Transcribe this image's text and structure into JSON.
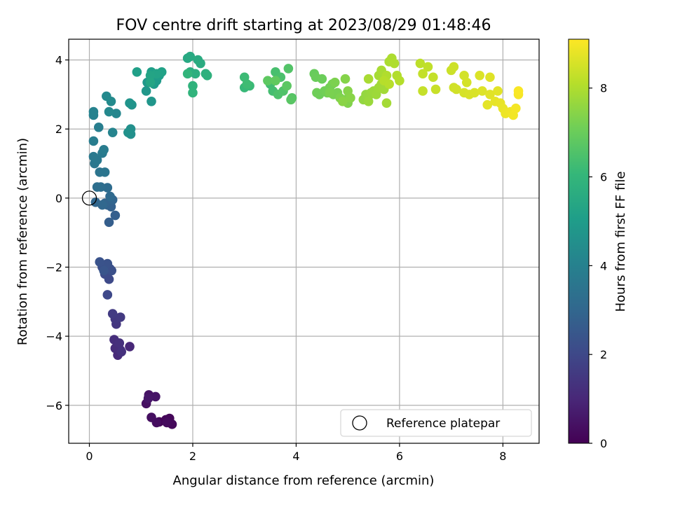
{
  "chart_data": {
    "type": "scatter",
    "title": "FOV centre drift starting at 2023/08/29 01:48:46",
    "xlabel": "Angular distance from reference (arcmin)",
    "ylabel": "Rotation from reference (arcmin)",
    "xlim": [
      -0.4,
      8.7
    ],
    "ylim": [
      -7.1,
      4.6
    ],
    "xticks": [
      0,
      2,
      4,
      6,
      8
    ],
    "yticks": [
      -6,
      -4,
      -2,
      0,
      2,
      4
    ],
    "grid": true,
    "legend": {
      "placement": "bottom-right",
      "entries": [
        "Reference platepar"
      ]
    },
    "reference_point": {
      "label": "Reference platepar",
      "x": 0,
      "y": 0
    },
    "colorbar": {
      "label": "Hours from first FF file",
      "range": [
        0,
        9.1
      ],
      "ticks": [
        0,
        2,
        4,
        6,
        8
      ],
      "colormap": "viridis",
      "colormap_stops": [
        "#440154",
        "#482878",
        "#3e4989",
        "#31688e",
        "#26828e",
        "#1f9e89",
        "#35b779",
        "#6ece58",
        "#b5de2b",
        "#fde725"
      ]
    },
    "points": [
      {
        "x": 1.35,
        "y": -6.48,
        "t": 0.05
      },
      {
        "x": 1.48,
        "y": -6.42,
        "t": 0.1
      },
      {
        "x": 1.55,
        "y": -6.38,
        "t": 0.15
      },
      {
        "x": 1.6,
        "y": -6.55,
        "t": 0.2
      },
      {
        "x": 1.5,
        "y": -6.5,
        "t": 0.25
      },
      {
        "x": 1.3,
        "y": -6.5,
        "t": 0.3
      },
      {
        "x": 1.2,
        "y": -6.35,
        "t": 0.35
      },
      {
        "x": 1.1,
        "y": -5.95,
        "t": 0.4
      },
      {
        "x": 1.15,
        "y": -5.7,
        "t": 0.45
      },
      {
        "x": 1.28,
        "y": -5.75,
        "t": 0.5
      },
      {
        "x": 1.14,
        "y": -5.8,
        "t": 0.55
      },
      {
        "x": 0.78,
        "y": -4.3,
        "t": 1.0
      },
      {
        "x": 0.6,
        "y": -4.4,
        "t": 1.05
      },
      {
        "x": 0.55,
        "y": -4.55,
        "t": 1.1
      },
      {
        "x": 0.5,
        "y": -4.35,
        "t": 1.15
      },
      {
        "x": 0.48,
        "y": -4.1,
        "t": 1.2
      },
      {
        "x": 0.58,
        "y": -4.2,
        "t": 1.25
      },
      {
        "x": 0.62,
        "y": -4.45,
        "t": 1.3
      },
      {
        "x": 0.52,
        "y": -3.65,
        "t": 1.45
      },
      {
        "x": 0.5,
        "y": -3.5,
        "t": 1.5
      },
      {
        "x": 0.6,
        "y": -3.45,
        "t": 1.55
      },
      {
        "x": 0.45,
        "y": -3.35,
        "t": 1.6
      },
      {
        "x": 0.35,
        "y": -2.8,
        "t": 2.0
      },
      {
        "x": 0.38,
        "y": -2.35,
        "t": 2.05
      },
      {
        "x": 0.3,
        "y": -2.2,
        "t": 2.1
      },
      {
        "x": 0.25,
        "y": -2.0,
        "t": 2.15
      },
      {
        "x": 0.4,
        "y": -2.05,
        "t": 2.2
      },
      {
        "x": 0.43,
        "y": -2.1,
        "t": 2.25
      },
      {
        "x": 0.35,
        "y": -1.9,
        "t": 2.3
      },
      {
        "x": 0.2,
        "y": -1.85,
        "t": 2.35
      },
      {
        "x": 0.28,
        "y": -2.1,
        "t": 2.4
      },
      {
        "x": 0.38,
        "y": -0.7,
        "t": 2.7
      },
      {
        "x": 0.5,
        "y": -0.5,
        "t": 2.75
      },
      {
        "x": 0.42,
        "y": -0.25,
        "t": 2.8
      },
      {
        "x": 0.35,
        "y": -0.2,
        "t": 2.85
      },
      {
        "x": 0.3,
        "y": -0.15,
        "t": 2.9
      },
      {
        "x": 0.45,
        "y": -0.05,
        "t": 2.95
      },
      {
        "x": 0.12,
        "y": -0.12,
        "t": 3.0
      },
      {
        "x": 0.25,
        "y": -0.2,
        "t": 3.05
      },
      {
        "x": 0.4,
        "y": 0.05,
        "t": 3.1
      },
      {
        "x": 0.35,
        "y": 0.3,
        "t": 3.2
      },
      {
        "x": 0.22,
        "y": 0.32,
        "t": 3.25
      },
      {
        "x": 0.15,
        "y": 0.32,
        "t": 3.3
      },
      {
        "x": 0.2,
        "y": 0.75,
        "t": 3.5
      },
      {
        "x": 0.3,
        "y": 0.75,
        "t": 3.55
      },
      {
        "x": 0.1,
        "y": 1.0,
        "t": 3.6
      },
      {
        "x": 0.15,
        "y": 1.1,
        "t": 3.65
      },
      {
        "x": 0.08,
        "y": 1.2,
        "t": 3.7
      },
      {
        "x": 0.25,
        "y": 1.3,
        "t": 3.75
      },
      {
        "x": 0.28,
        "y": 1.4,
        "t": 3.8
      },
      {
        "x": 0.08,
        "y": 1.65,
        "t": 3.85
      },
      {
        "x": 0.18,
        "y": 2.05,
        "t": 3.9
      },
      {
        "x": 0.08,
        "y": 2.4,
        "t": 4.0
      },
      {
        "x": 0.08,
        "y": 2.5,
        "t": 4.05
      },
      {
        "x": 0.45,
        "y": 1.9,
        "t": 4.1
      },
      {
        "x": 0.52,
        "y": 2.45,
        "t": 4.2
      },
      {
        "x": 0.38,
        "y": 2.5,
        "t": 4.25
      },
      {
        "x": 0.33,
        "y": 2.95,
        "t": 4.3
      },
      {
        "x": 0.42,
        "y": 2.8,
        "t": 4.35
      },
      {
        "x": 0.8,
        "y": 1.85,
        "t": 4.5
      },
      {
        "x": 0.8,
        "y": 2.0,
        "t": 4.55
      },
      {
        "x": 0.75,
        "y": 1.9,
        "t": 4.6
      },
      {
        "x": 0.82,
        "y": 2.7,
        "t": 4.65
      },
      {
        "x": 0.78,
        "y": 2.75,
        "t": 4.7
      },
      {
        "x": 1.2,
        "y": 2.8,
        "t": 4.75
      },
      {
        "x": 1.1,
        "y": 3.1,
        "t": 4.8
      },
      {
        "x": 1.12,
        "y": 3.35,
        "t": 4.85
      },
      {
        "x": 1.22,
        "y": 3.45,
        "t": 4.9
      },
      {
        "x": 1.3,
        "y": 3.4,
        "t": 4.95
      },
      {
        "x": 1.25,
        "y": 3.3,
        "t": 5.0
      },
      {
        "x": 1.35,
        "y": 3.55,
        "t": 5.05
      },
      {
        "x": 1.2,
        "y": 3.65,
        "t": 5.1
      },
      {
        "x": 0.92,
        "y": 3.65,
        "t": 5.15
      },
      {
        "x": 1.4,
        "y": 3.65,
        "t": 5.2
      },
      {
        "x": 1.3,
        "y": 3.6,
        "t": 5.25
      },
      {
        "x": 1.18,
        "y": 3.55,
        "t": 5.3
      },
      {
        "x": 1.18,
        "y": 3.35,
        "t": 5.35
      },
      {
        "x": 1.9,
        "y": 4.05,
        "t": 5.45
      },
      {
        "x": 1.95,
        "y": 4.1,
        "t": 5.5
      },
      {
        "x": 2.1,
        "y": 4.0,
        "t": 5.55
      },
      {
        "x": 2.15,
        "y": 3.9,
        "t": 5.6
      },
      {
        "x": 1.95,
        "y": 3.65,
        "t": 5.65
      },
      {
        "x": 2.05,
        "y": 3.6,
        "t": 5.7
      },
      {
        "x": 2.25,
        "y": 3.6,
        "t": 5.75
      },
      {
        "x": 2.28,
        "y": 3.55,
        "t": 5.8
      },
      {
        "x": 2.0,
        "y": 3.25,
        "t": 5.85
      },
      {
        "x": 2.0,
        "y": 3.05,
        "t": 5.9
      },
      {
        "x": 1.9,
        "y": 3.6,
        "t": 5.95
      },
      {
        "x": 3.0,
        "y": 3.2,
        "t": 6.1
      },
      {
        "x": 3.1,
        "y": 3.25,
        "t": 6.15
      },
      {
        "x": 3.0,
        "y": 3.5,
        "t": 6.2
      },
      {
        "x": 3.05,
        "y": 3.3,
        "t": 6.25
      },
      {
        "x": 3.5,
        "y": 3.3,
        "t": 6.3
      },
      {
        "x": 3.55,
        "y": 3.1,
        "t": 6.35
      },
      {
        "x": 3.6,
        "y": 3.65,
        "t": 6.4
      },
      {
        "x": 3.7,
        "y": 3.5,
        "t": 6.45
      },
      {
        "x": 3.65,
        "y": 3.0,
        "t": 6.5
      },
      {
        "x": 3.75,
        "y": 3.1,
        "t": 6.55
      },
      {
        "x": 3.85,
        "y": 3.75,
        "t": 6.6
      },
      {
        "x": 3.92,
        "y": 2.9,
        "t": 6.65
      },
      {
        "x": 3.9,
        "y": 2.85,
        "t": 6.7
      },
      {
        "x": 3.82,
        "y": 3.25,
        "t": 6.75
      },
      {
        "x": 3.45,
        "y": 3.4,
        "t": 6.8
      },
      {
        "x": 3.6,
        "y": 3.4,
        "t": 6.85
      },
      {
        "x": 4.35,
        "y": 3.6,
        "t": 6.95
      },
      {
        "x": 4.38,
        "y": 3.5,
        "t": 7.0
      },
      {
        "x": 4.5,
        "y": 3.45,
        "t": 7.02
      },
      {
        "x": 4.45,
        "y": 3.0,
        "t": 7.05
      },
      {
        "x": 4.4,
        "y": 3.05,
        "t": 7.08
      },
      {
        "x": 4.55,
        "y": 3.1,
        "t": 7.1
      },
      {
        "x": 4.6,
        "y": 3.05,
        "t": 7.12
      },
      {
        "x": 4.65,
        "y": 3.2,
        "t": 7.15
      },
      {
        "x": 4.7,
        "y": 3.3,
        "t": 7.18
      },
      {
        "x": 4.72,
        "y": 3.0,
        "t": 7.2
      },
      {
        "x": 4.8,
        "y": 3.05,
        "t": 7.22
      },
      {
        "x": 4.65,
        "y": 3.05,
        "t": 7.25
      },
      {
        "x": 4.75,
        "y": 3.35,
        "t": 7.28
      },
      {
        "x": 4.85,
        "y": 2.9,
        "t": 7.3
      },
      {
        "x": 4.95,
        "y": 2.85,
        "t": 7.32
      },
      {
        "x": 5.0,
        "y": 2.75,
        "t": 7.35
      },
      {
        "x": 5.05,
        "y": 2.9,
        "t": 7.38
      },
      {
        "x": 4.95,
        "y": 3.45,
        "t": 7.4
      },
      {
        "x": 5.0,
        "y": 3.1,
        "t": 7.42
      },
      {
        "x": 5.05,
        "y": 2.9,
        "t": 7.45
      },
      {
        "x": 4.9,
        "y": 2.8,
        "t": 7.48
      },
      {
        "x": 5.3,
        "y": 2.85,
        "t": 7.6
      },
      {
        "x": 5.35,
        "y": 3.0,
        "t": 7.62
      },
      {
        "x": 5.4,
        "y": 2.95,
        "t": 7.65
      },
      {
        "x": 5.45,
        "y": 3.05,
        "t": 7.68
      },
      {
        "x": 5.4,
        "y": 2.8,
        "t": 7.7
      },
      {
        "x": 5.5,
        "y": 3.1,
        "t": 7.72
      },
      {
        "x": 5.55,
        "y": 3.0,
        "t": 7.75
      },
      {
        "x": 5.6,
        "y": 3.2,
        "t": 7.78
      },
      {
        "x": 5.65,
        "y": 3.3,
        "t": 7.8
      },
      {
        "x": 5.7,
        "y": 3.15,
        "t": 7.82
      },
      {
        "x": 5.75,
        "y": 2.75,
        "t": 7.85
      },
      {
        "x": 5.6,
        "y": 3.55,
        "t": 7.88
      },
      {
        "x": 5.65,
        "y": 3.7,
        "t": 7.9
      },
      {
        "x": 5.4,
        "y": 3.45,
        "t": 7.92
      },
      {
        "x": 5.8,
        "y": 3.95,
        "t": 7.95
      },
      {
        "x": 5.85,
        "y": 4.05,
        "t": 7.98
      },
      {
        "x": 5.9,
        "y": 3.9,
        "t": 8.0
      },
      {
        "x": 5.75,
        "y": 3.55,
        "t": 8.02
      },
      {
        "x": 5.95,
        "y": 3.55,
        "t": 8.05
      },
      {
        "x": 6.0,
        "y": 3.4,
        "t": 8.08
      },
      {
        "x": 5.7,
        "y": 3.4,
        "t": 8.1
      },
      {
        "x": 5.8,
        "y": 3.3,
        "t": 8.12
      },
      {
        "x": 6.4,
        "y": 3.9,
        "t": 8.2
      },
      {
        "x": 6.55,
        "y": 3.8,
        "t": 8.25
      },
      {
        "x": 6.45,
        "y": 3.6,
        "t": 8.28
      },
      {
        "x": 6.65,
        "y": 3.5,
        "t": 8.3
      },
      {
        "x": 6.45,
        "y": 3.1,
        "t": 8.32
      },
      {
        "x": 6.7,
        "y": 3.15,
        "t": 8.35
      },
      {
        "x": 7.0,
        "y": 3.7,
        "t": 8.4
      },
      {
        "x": 7.05,
        "y": 3.8,
        "t": 8.42
      },
      {
        "x": 7.05,
        "y": 3.2,
        "t": 8.45
      },
      {
        "x": 7.1,
        "y": 3.15,
        "t": 8.48
      },
      {
        "x": 7.25,
        "y": 3.55,
        "t": 8.5
      },
      {
        "x": 7.3,
        "y": 3.35,
        "t": 8.52
      },
      {
        "x": 7.25,
        "y": 3.05,
        "t": 8.55
      },
      {
        "x": 7.35,
        "y": 3.0,
        "t": 8.58
      },
      {
        "x": 7.45,
        "y": 3.05,
        "t": 8.6
      },
      {
        "x": 7.55,
        "y": 3.55,
        "t": 8.62
      },
      {
        "x": 7.6,
        "y": 3.1,
        "t": 8.65
      },
      {
        "x": 7.75,
        "y": 3.5,
        "t": 8.68
      },
      {
        "x": 7.75,
        "y": 3.0,
        "t": 8.7
      },
      {
        "x": 7.9,
        "y": 3.1,
        "t": 8.72
      },
      {
        "x": 7.7,
        "y": 2.7,
        "t": 8.75
      },
      {
        "x": 7.85,
        "y": 2.8,
        "t": 8.78
      },
      {
        "x": 7.95,
        "y": 2.75,
        "t": 8.8
      },
      {
        "x": 8.0,
        "y": 2.6,
        "t": 8.82
      },
      {
        "x": 8.05,
        "y": 2.5,
        "t": 8.85
      },
      {
        "x": 8.05,
        "y": 2.45,
        "t": 8.88
      },
      {
        "x": 8.15,
        "y": 2.5,
        "t": 8.9
      },
      {
        "x": 8.2,
        "y": 2.4,
        "t": 8.95
      },
      {
        "x": 8.25,
        "y": 2.6,
        "t": 8.98
      },
      {
        "x": 8.3,
        "y": 3.0,
        "t": 9.0
      },
      {
        "x": 8.3,
        "y": 3.1,
        "t": 9.05
      }
    ]
  }
}
